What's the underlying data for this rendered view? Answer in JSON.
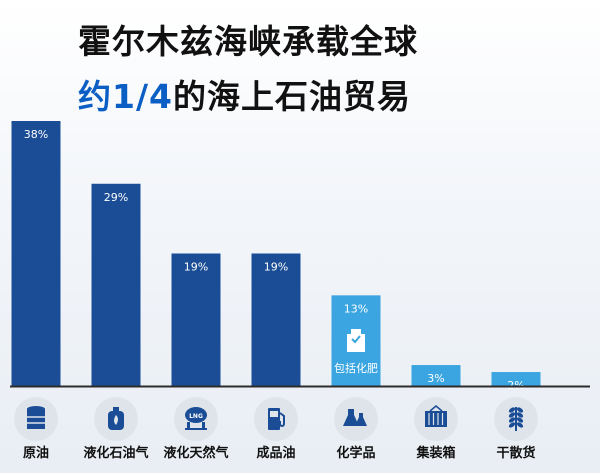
{
  "title": {
    "line1": "霍尔木兹海峡承载全球",
    "line2_highlight": "约1/4",
    "line2_rest": "的海上石油贸易"
  },
  "colors": {
    "bar_dark": "#1b4d96",
    "bar_light": "#3aa5e0",
    "axis": "#2b2b2b",
    "icon_circle": "#dfe4ea",
    "icon_fill": "#1b4d96",
    "title_highlight": "#0b5fc4"
  },
  "chart_data": {
    "type": "bar",
    "categories": [
      "原油",
      "液化石油气",
      "液化天然气",
      "成品油",
      "化学品",
      "集装箱",
      "干散货"
    ],
    "values": [
      38,
      29,
      19,
      19,
      13,
      3,
      2
    ],
    "value_labels": [
      "38%",
      "29%",
      "19%",
      "19%",
      "13%",
      "3%",
      "2%"
    ],
    "bar_colors": [
      "dark",
      "dark",
      "dark",
      "dark",
      "light",
      "light",
      "light"
    ],
    "annotations": [
      {
        "category": "化学品",
        "text": "包括化肥",
        "icon": "fertilizer-bag-icon"
      }
    ],
    "icons": [
      "oil-barrel-icon",
      "gas-cylinder-icon",
      "lng-tank-icon",
      "fuel-pump-icon",
      "flask-icon",
      "container-icon",
      "wheat-icon"
    ],
    "ylim": [
      0,
      38
    ],
    "xlabel": "",
    "ylabel": ""
  }
}
